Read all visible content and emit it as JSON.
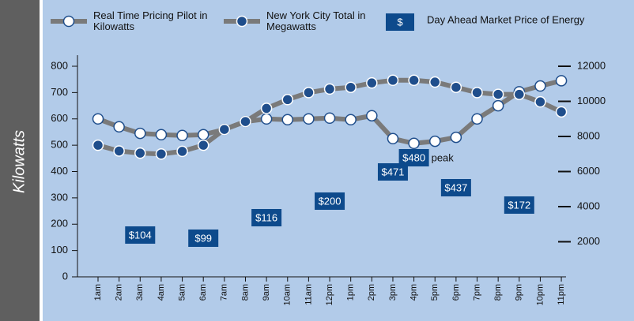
{
  "chart_data": {
    "type": "line",
    "y_label": "Kilowatts",
    "categories": [
      "1am",
      "2am",
      "3am",
      "4am",
      "5am",
      "6am",
      "7am",
      "8am",
      "9am",
      "10am",
      "11am",
      "12pm",
      "1pm",
      "2pm",
      "3pm",
      "4pm",
      "5pm",
      "6pm",
      "7pm",
      "8pm",
      "9pm",
      "10pm",
      "11pm"
    ],
    "series": [
      {
        "name": "Real Time Pricing Pilot in Kilowatts",
        "color": "#ffffff",
        "line_color": "#7a7a7a",
        "values": [
          600,
          570,
          545,
          540,
          537,
          540,
          560,
          590,
          600,
          597,
          600,
          603,
          597,
          612,
          525,
          507,
          515,
          530,
          600,
          650,
          703,
          725,
          745
        ]
      },
      {
        "name": "New York City Total in Megawatts",
        "color": "#1f4e8c",
        "line_color": "#7a7a7a",
        "axis": "y2",
        "values": [
          7500,
          7170,
          7050,
          7000,
          7150,
          7500,
          8400,
          8850,
          9600,
          10100,
          10500,
          10700,
          10800,
          11050,
          11200,
          11200,
          11100,
          10800,
          10500,
          10400,
          10400,
          9970,
          9400
        ]
      }
    ],
    "ylim": [
      0,
      800
    ],
    "yticks": [
      0,
      100,
      200,
      300,
      400,
      500,
      600,
      700,
      800
    ],
    "y2lim": [
      0,
      12000
    ],
    "y2ticks": [
      2000,
      4000,
      6000,
      8000,
      10000,
      12000
    ],
    "price": {
      "name": "Day Ahead Market Price of Energy",
      "symbol": "$",
      "color": "#0d4a8c",
      "categories": [
        "3am",
        "6am",
        "9am",
        "12pm",
        "3pm",
        "4pm",
        "6pm",
        "9pm"
      ],
      "values": [
        104,
        99,
        116,
        200,
        471,
        480,
        437,
        172
      ],
      "value_labels": [
        "$104",
        "$99",
        "$116",
        "$200",
        "$471",
        "$480",
        "$437",
        "$172"
      ]
    },
    "annotation": "peak"
  }
}
